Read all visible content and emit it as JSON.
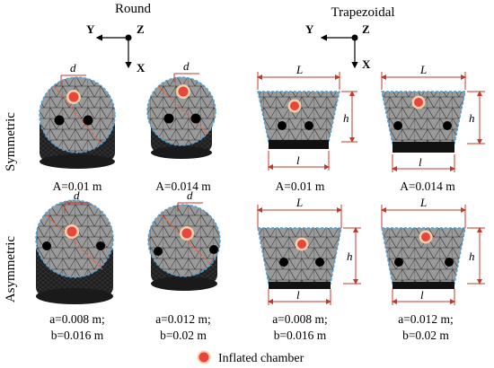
{
  "columns": {
    "round": "Round",
    "trapezoidal": "Trapezoidal"
  },
  "rows": {
    "symmetric": "Symmetric",
    "asymmetric": "Asymmetric"
  },
  "axes": {
    "y": "Y",
    "z": "Z",
    "x": "X"
  },
  "dims": {
    "d": "d",
    "L": "L",
    "h": "h",
    "l": "l"
  },
  "captions": {
    "sym_round_1": "A=0.01 m",
    "sym_round_2": "A=0.014 m",
    "sym_trap_1": "A=0.01 m",
    "sym_trap_2": "A=0.014 m",
    "asym_round_1_a": "a=0.008 m;",
    "asym_round_1_b": "b=0.016 m",
    "asym_round_2_a": "a=0.012 m;",
    "asym_round_2_b": "b=0.02 m",
    "asym_trap_1_a": "a=0.008 m;",
    "asym_trap_1_b": "b=0.016 m",
    "asym_trap_2_a": "a=0.012 m;",
    "asym_trap_2_b": "b=0.02 m"
  },
  "legend": {
    "label": "Inflated chamber"
  },
  "colors": {
    "mesh_fill": "#9a9a9a",
    "body_dark": "#222222",
    "outline": "#4aa3df",
    "dimension": "#c0392b",
    "chamber_fill": "#e8453c",
    "chamber_ring": "#f5d0a9"
  }
}
